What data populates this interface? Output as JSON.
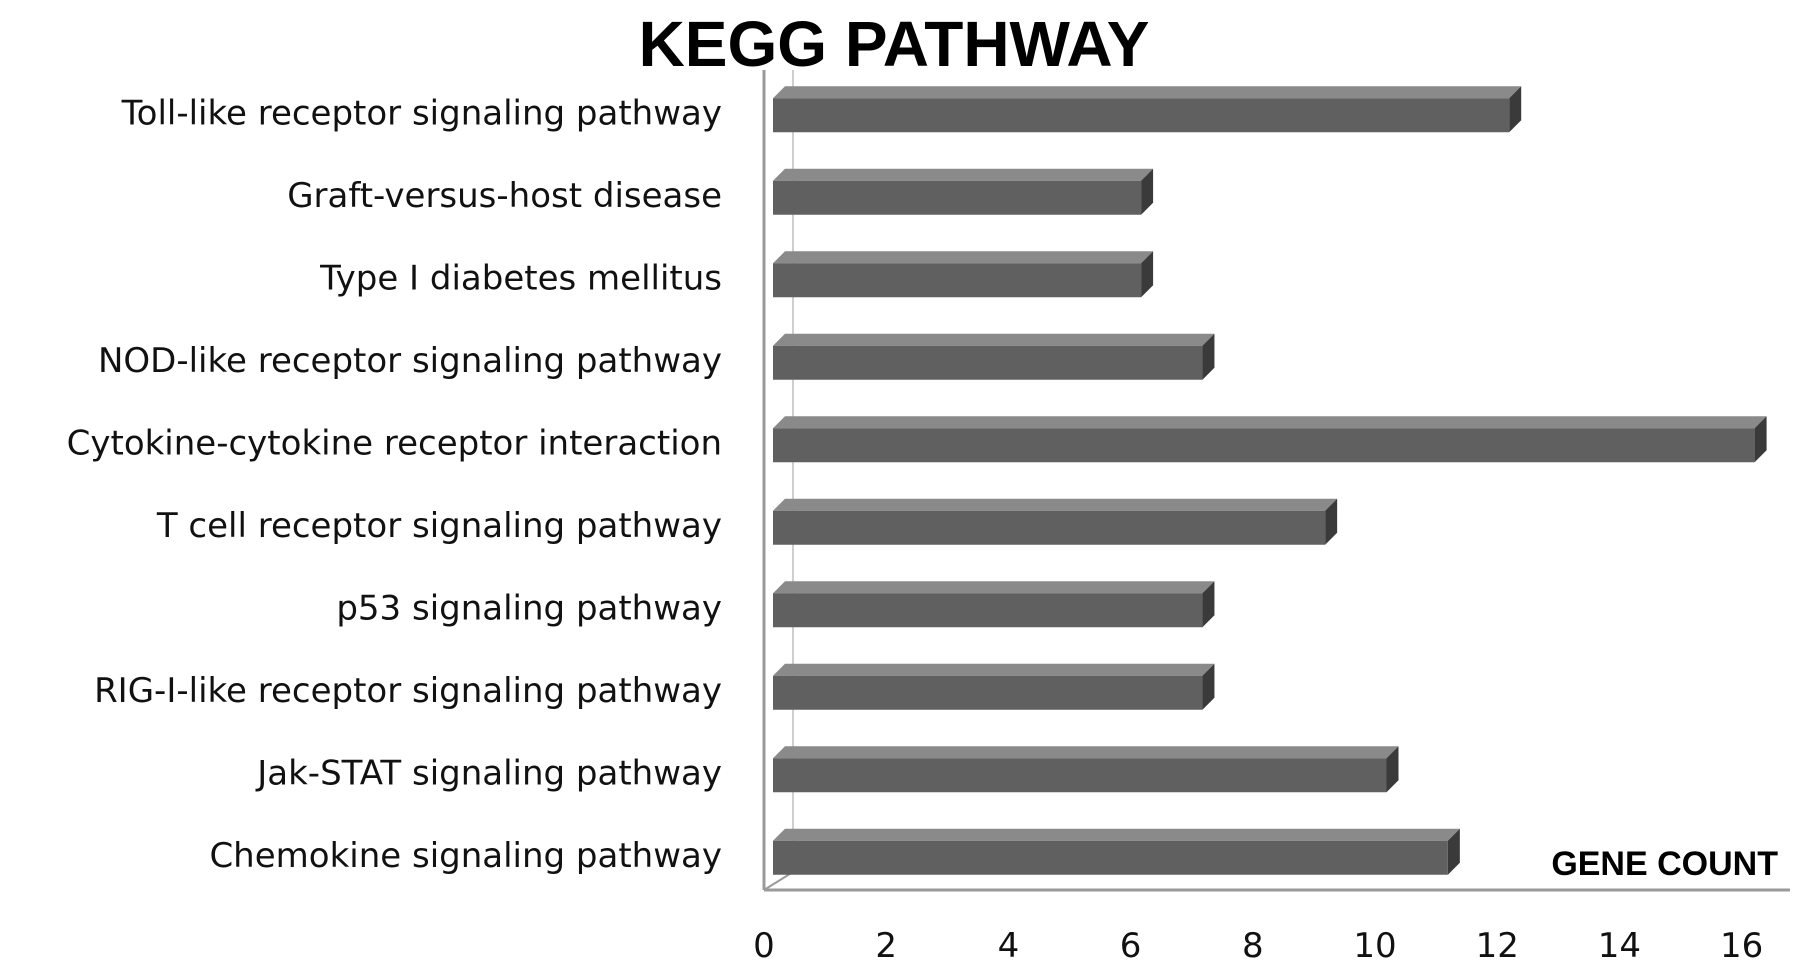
{
  "chart_data": {
    "type": "bar",
    "orientation": "horizontal",
    "title": "KEGG PATHWAY",
    "xlabel": "GENE COUNT",
    "ylabel": "",
    "categories": [
      "Toll-like receptor signaling pathway",
      "Graft-versus-host disease",
      "Type I diabetes mellitus",
      "NOD-like receptor signaling pathway",
      "Cytokine-cytokine receptor interaction",
      "T cell receptor signaling pathway",
      "p53 signaling pathway",
      "RIG-I-like receptor signaling pathway",
      "Jak-STAT signaling pathway",
      "Chemokine signaling pathway"
    ],
    "values": [
      12,
      6,
      6,
      7,
      16,
      9,
      7,
      7,
      10,
      11
    ],
    "xlim": [
      0,
      16
    ],
    "xticks": [
      "0",
      "2",
      "4",
      "6",
      "8",
      "10",
      "12",
      "14",
      "16"
    ],
    "grid": false,
    "legend": "none",
    "colors": {
      "bar_front": "#606060",
      "bar_top": "#8a8a8a",
      "bar_side": "#3a3a3a",
      "axis": "#9a9a9a"
    }
  }
}
